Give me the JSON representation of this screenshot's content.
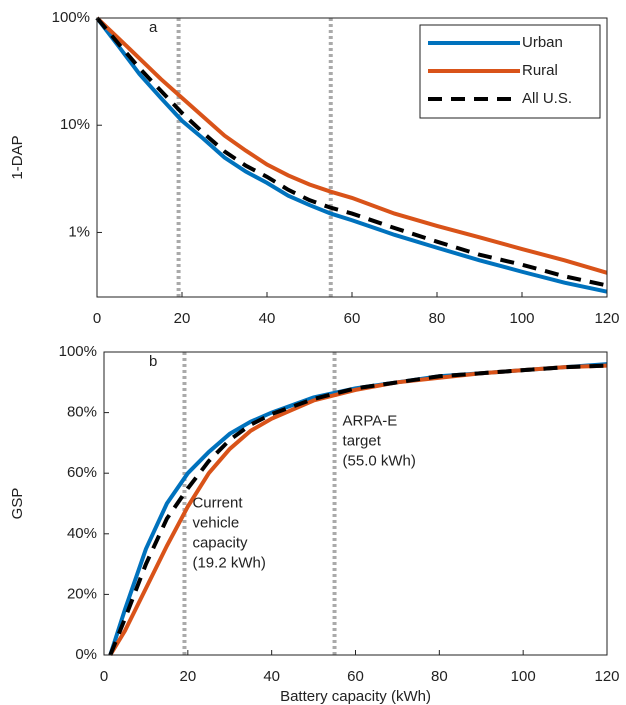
{
  "chart_data": [
    {
      "type": "line",
      "panel": "a",
      "ylabel": "1-DAP",
      "yscale": "log",
      "xlim": [
        0,
        120
      ],
      "xticks": [
        0,
        20,
        40,
        60,
        80,
        100,
        120
      ],
      "ylim": [
        0.25,
        100
      ],
      "yticks": [
        {
          "value": 1,
          "label": "1%"
        },
        {
          "value": 10,
          "label": "10%"
        },
        {
          "value": 100,
          "label": "100%"
        }
      ],
      "vlines": [
        19.2,
        55
      ],
      "legend": "upper right",
      "x": [
        0,
        5,
        10,
        15,
        20,
        25,
        30,
        35,
        40,
        45,
        50,
        55,
        60,
        70,
        80,
        90,
        100,
        110,
        120
      ],
      "series": [
        {
          "name": "Urban",
          "color": "#0072bd",
          "values": [
            100,
            55,
            30,
            18,
            11,
            7.5,
            5,
            3.7,
            2.9,
            2.2,
            1.8,
            1.5,
            1.3,
            0.95,
            0.72,
            0.55,
            0.43,
            0.34,
            0.28
          ]
        },
        {
          "name": "Rural",
          "color": "#d95319",
          "values": [
            100,
            65,
            42,
            27,
            18,
            12,
            8,
            5.8,
            4.3,
            3.4,
            2.8,
            2.4,
            2.1,
            1.5,
            1.15,
            0.9,
            0.7,
            0.55,
            0.42
          ]
        },
        {
          "name": "All U.S.",
          "color": "#000000",
          "dashed": true,
          "values": [
            100,
            58,
            34,
            21,
            13,
            8.5,
            5.7,
            4.2,
            3.3,
            2.5,
            2.0,
            1.7,
            1.5,
            1.1,
            0.82,
            0.62,
            0.5,
            0.39,
            0.32
          ]
        }
      ]
    },
    {
      "type": "line",
      "panel": "b",
      "ylabel": "GSP",
      "xlabel": "Battery capacity (kWh)",
      "xlim": [
        0,
        120
      ],
      "xticks": [
        0,
        20,
        40,
        60,
        80,
        100,
        120
      ],
      "ylim": [
        0,
        100
      ],
      "yticks": [
        {
          "value": 0,
          "label": "0%"
        },
        {
          "value": 20,
          "label": "20%"
        },
        {
          "value": 40,
          "label": "40%"
        },
        {
          "value": 60,
          "label": "60%"
        },
        {
          "value": 80,
          "label": "80%"
        },
        {
          "value": 100,
          "label": "100%"
        }
      ],
      "vlines": [
        19.2,
        55
      ],
      "annotations": [
        [
          "Current",
          "vehicle",
          "capacity",
          "(19.2 kWh)"
        ],
        [
          "ARPA-E",
          "target",
          "(55.0 kWh)"
        ]
      ],
      "x": [
        1.5,
        5,
        10,
        15,
        20,
        25,
        30,
        35,
        40,
        50,
        60,
        70,
        80,
        90,
        100,
        110,
        120
      ],
      "series": [
        {
          "color": "#0072bd",
          "values": [
            0,
            15,
            35,
            50,
            60,
            67,
            73,
            77,
            80,
            85,
            88,
            90,
            92,
            93,
            94,
            95,
            96
          ]
        },
        {
          "color": "#d95319",
          "values": [
            0,
            8,
            22,
            36,
            49,
            60,
            68,
            74,
            78,
            84,
            87.5,
            90,
            91.5,
            93,
            94,
            95,
            95.5
          ]
        },
        {
          "color": "#000000",
          "dashed": true,
          "values": [
            0,
            12,
            30,
            45,
            55,
            64,
            71,
            76,
            79.5,
            84.5,
            88,
            90,
            92,
            93,
            94,
            95,
            95.5
          ]
        }
      ]
    }
  ]
}
